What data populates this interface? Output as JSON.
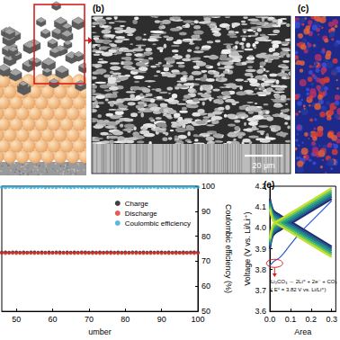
{
  "figure": {
    "panel_b": {
      "label": "(b)",
      "scale_bar": "20 μm"
    },
    "panel_c": {
      "label": "(c)"
    }
  },
  "chart_data": [
    {
      "type": "scatter",
      "xlabel": "umber",
      "ylabel": "Coulombic efficiency (%)",
      "x": [
        46,
        47,
        48,
        49,
        50,
        51,
        52,
        53,
        54,
        55,
        56,
        57,
        58,
        59,
        60,
        61,
        62,
        63,
        64,
        65,
        66,
        67,
        68,
        69,
        70,
        71,
        72,
        73,
        74,
        75,
        76,
        77,
        78,
        79,
        80,
        81,
        82,
        83,
        84,
        85,
        86,
        87,
        88,
        89,
        90,
        91,
        92,
        93,
        94,
        95,
        96,
        97,
        98,
        99,
        100
      ],
      "series": [
        {
          "name": "Charge",
          "color": "#111111",
          "marker": "circle",
          "values": [
            73.5,
            73.6,
            73.5,
            73.6,
            73.6,
            73.5,
            73.6,
            73.5,
            73.6,
            73.6,
            73.5,
            73.6,
            73.5,
            73.6,
            73.5,
            73.6,
            73.6,
            73.5,
            73.6,
            73.5,
            73.6,
            73.5,
            73.6,
            73.6,
            73.5,
            73.6,
            73.5,
            73.6,
            73.5,
            73.6,
            73.6,
            73.5,
            73.6,
            73.5,
            73.6,
            73.5,
            73.6,
            73.6,
            73.5,
            73.6,
            73.5,
            73.6,
            73.5,
            73.6,
            73.6,
            73.5,
            73.6,
            73.5,
            73.6,
            73.5,
            73.6,
            73.5,
            73.6,
            73.6,
            73.5
          ]
        },
        {
          "name": "Discharge",
          "color": "#e0302a",
          "marker": "circle",
          "values": [
            73.3,
            73.2,
            73.3,
            73.3,
            73.2,
            73.3,
            73.2,
            73.3,
            73.3,
            73.2,
            73.3,
            73.2,
            73.3,
            73.2,
            73.3,
            73.3,
            73.2,
            73.3,
            73.2,
            73.3,
            73.2,
            73.3,
            73.3,
            73.2,
            73.3,
            73.2,
            73.3,
            73.2,
            73.3,
            73.3,
            73.2,
            73.3,
            73.2,
            73.3,
            73.2,
            73.3,
            73.3,
            73.2,
            73.3,
            73.2,
            73.3,
            73.2,
            73.3,
            73.3,
            73.2,
            73.3,
            73.2,
            73.3,
            73.2,
            73.3,
            73.2,
            73.3,
            73.3,
            73.2,
            73.3
          ]
        },
        {
          "name": "Coulombic efficiency",
          "color": "#2fa8d8",
          "marker": "circle",
          "values": [
            99.6,
            99.5,
            99.7,
            99.6,
            99.6,
            99.5,
            99.6,
            99.7,
            99.5,
            99.6,
            99.6,
            99.7,
            99.5,
            99.6,
            99.6,
            99.5,
            99.7,
            99.6,
            99.6,
            99.5,
            99.6,
            99.7,
            99.6,
            99.5,
            99.6,
            99.6,
            99.7,
            99.5,
            99.6,
            99.6,
            99.5,
            99.6,
            99.7,
            99.6,
            99.6,
            99.5,
            99.6,
            99.7,
            99.6,
            99.5,
            99.6,
            99.6,
            99.7,
            99.5,
            99.6,
            99.6,
            99.5,
            99.7,
            99.6,
            99.6,
            99.5,
            99.6,
            99.7,
            99.6,
            99.6
          ]
        }
      ],
      "xlim": [
        46,
        100
      ],
      "xticks": [
        50,
        60,
        70,
        80,
        90,
        100
      ],
      "ylim": [
        50,
        100
      ],
      "yticks": [
        50,
        60,
        70,
        80,
        90,
        100
      ],
      "legend": "upper right"
    },
    {
      "type": "line",
      "title": "(e)",
      "xlabel": "Area",
      "ylabel": "Voltage (V vs. Li/Li⁺)",
      "annotations": [
        "Li₂CO₃ → 2Li⁺ + 2e⁻ + CO₂",
        "( E⁰ = 3.82 V vs. Li/Li⁺)"
      ],
      "x": [
        0,
        0.01,
        0.02,
        0.05,
        0.1,
        0.15,
        0.2,
        0.25,
        0.3
      ],
      "series": [
        {
          "color": "#2b59c3",
          "values": [
            3.82,
            3.83,
            3.84,
            3.86,
            3.92,
            3.98,
            4.03,
            4.08,
            4.13
          ]
        },
        {
          "color": "#1d2f6f",
          "values": [
            3.9,
            3.95,
            3.97,
            3.99,
            4.02,
            4.05,
            4.08,
            4.11,
            4.14
          ]
        },
        {
          "color": "#1d2f6f",
          "values": [
            4.14,
            4.1,
            4.08,
            4.06,
            4.03,
            4,
            3.97,
            3.94,
            3.91
          ]
        },
        {
          "color": "#25588e",
          "values": [
            3.91,
            3.96,
            3.98,
            4,
            4.03,
            4.06,
            4.09,
            4.12,
            4.15
          ]
        },
        {
          "color": "#25588e",
          "values": [
            4.13,
            4.09,
            4.07,
            4.05,
            4.02,
            3.99,
            3.96,
            3.93,
            3.9
          ]
        },
        {
          "color": "#21838c",
          "values": [
            3.92,
            3.97,
            3.99,
            4.01,
            4.04,
            4.07,
            4.1,
            4.13,
            4.16
          ]
        },
        {
          "color": "#21838c",
          "values": [
            4.12,
            4.08,
            4.06,
            4.04,
            4.01,
            3.98,
            3.95,
            3.92,
            3.89
          ]
        },
        {
          "color": "#2aa580",
          "values": [
            3.93,
            3.98,
            4,
            4.02,
            4.05,
            4.08,
            4.11,
            4.14,
            4.17
          ]
        },
        {
          "color": "#2aa580",
          "values": [
            4.11,
            4.07,
            4.05,
            4.03,
            4,
            3.97,
            3.94,
            3.91,
            3.88
          ]
        },
        {
          "color": "#6cc558",
          "values": [
            3.94,
            3.99,
            4.01,
            4.03,
            4.06,
            4.09,
            4.12,
            4.15,
            4.18
          ]
        },
        {
          "color": "#6cc558",
          "values": [
            4.1,
            4.06,
            4.04,
            4.02,
            3.99,
            3.96,
            3.93,
            3.9,
            3.87
          ]
        },
        {
          "color": "#c3df2f",
          "values": [
            3.95,
            4,
            4.02,
            4.04,
            4.07,
            4.1,
            4.13,
            4.16,
            4.19
          ]
        },
        {
          "color": "#c3df2f",
          "values": [
            4.09,
            4.05,
            4.03,
            4.01,
            3.98,
            3.95,
            3.92,
            3.89,
            3.86
          ]
        }
      ],
      "xlim": [
        0,
        0.32
      ],
      "xticks": [
        {
          "value": 0,
          "label": "0.0"
        },
        0.1,
        0.2,
        0.3
      ],
      "ylim": [
        3.6,
        4.2
      ],
      "yticks": [
        3.6,
        3.7,
        3.8,
        3.9,
        4,
        {
          "value": 4,
          "label": "4.0"
        },
        4.1,
        4.2
      ]
    }
  ]
}
